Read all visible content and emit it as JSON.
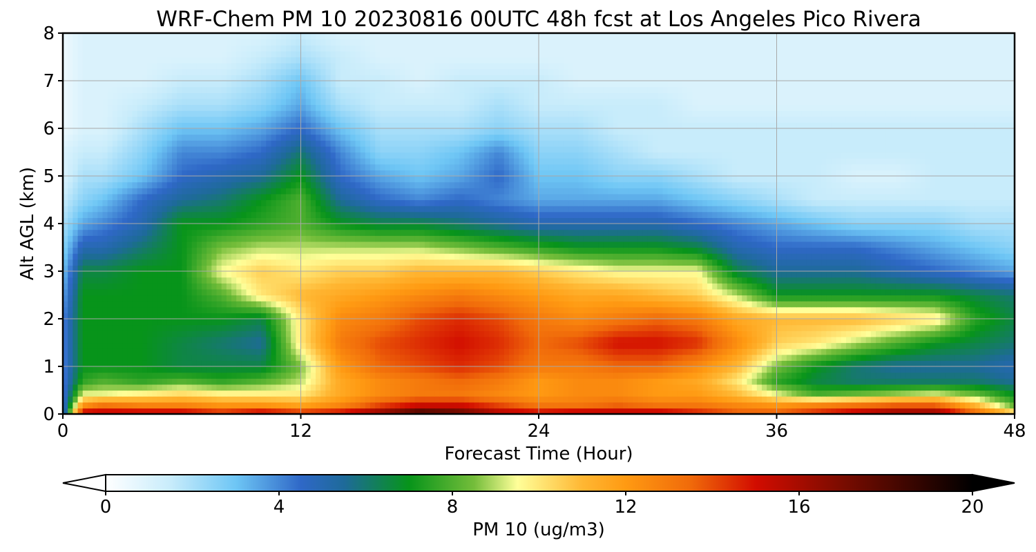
{
  "chart_data": {
    "type": "heatmap",
    "title": "WRF-Chem PM 10  20230816 00UTC 48h fcst at Los Angeles Pico Rivera",
    "xlabel": "Forecast Time (Hour)",
    "ylabel": "Alt AGL (km)",
    "xlim": [
      0,
      48
    ],
    "ylim": [
      0,
      8
    ],
    "x_ticks": [
      0,
      12,
      24,
      36,
      48
    ],
    "y_ticks": [
      0,
      1,
      2,
      3,
      4,
      5,
      6,
      7,
      8
    ],
    "grid": true,
    "colorbar": {
      "label": "PM 10  (ug/m3)",
      "orientation": "horizontal",
      "placement": "bottom",
      "min": 0,
      "max": 20,
      "ticks": [
        0,
        4,
        8,
        12,
        16,
        20
      ],
      "extend": "both"
    },
    "color_stops": [
      {
        "v": 0,
        "c": "#ffffff"
      },
      {
        "v": 1.5,
        "c": "#c8ecfb"
      },
      {
        "v": 3,
        "c": "#6ec6f5"
      },
      {
        "v": 4.5,
        "c": "#2f68c7"
      },
      {
        "v": 5.5,
        "c": "#1e6a9a"
      },
      {
        "v": 7,
        "c": "#07941a"
      },
      {
        "v": 8.5,
        "c": "#74bd3a"
      },
      {
        "v": 9.5,
        "c": "#ffff99"
      },
      {
        "v": 11,
        "c": "#ffb733"
      },
      {
        "v": 12,
        "c": "#ff9a12"
      },
      {
        "v": 13.5,
        "c": "#f06a0a"
      },
      {
        "v": 15,
        "c": "#d20c00"
      },
      {
        "v": 17,
        "c": "#7a0c00"
      },
      {
        "v": 20,
        "c": "#000000"
      }
    ],
    "x": [
      0,
      1,
      2,
      4,
      6,
      8,
      10,
      12,
      14,
      16,
      18,
      20,
      22,
      24,
      26,
      28,
      30,
      32,
      34,
      36,
      38,
      40,
      42,
      44,
      46,
      48
    ],
    "y": [
      0,
      0.2,
      0.4,
      0.7,
      1,
      1.5,
      2,
      2.5,
      3,
      3.5,
      4,
      4.5,
      5,
      5.5,
      6,
      6.5,
      7,
      7.5,
      8
    ],
    "z": [
      [
        4,
        16,
        16,
        16,
        16,
        15,
        16,
        15,
        15.5,
        17,
        19,
        18,
        16,
        15.5,
        16,
        16,
        16,
        15,
        14,
        14,
        15,
        16,
        17,
        17,
        14,
        11
      ],
      [
        4,
        12,
        13,
        12.5,
        12.5,
        12,
        12,
        11.5,
        12.5,
        14,
        15,
        15,
        14,
        13,
        13,
        13.5,
        13,
        13,
        12.5,
        12,
        12.5,
        13,
        13.5,
        13.5,
        11,
        8
      ],
      [
        4,
        9.5,
        9.5,
        10,
        10.5,
        10,
        10,
        10,
        11.5,
        12.5,
        13,
        13,
        12.5,
        12,
        12.5,
        12.5,
        12,
        12,
        11,
        9.5,
        8,
        8.5,
        9,
        9.5,
        8.5,
        7
      ],
      [
        4,
        7.5,
        8,
        7.5,
        8,
        7.5,
        8,
        9,
        11.5,
        12.5,
        13,
        13.5,
        13,
        12,
        12.5,
        12.5,
        12,
        11.5,
        10,
        7.5,
        6.5,
        6,
        6,
        6,
        6,
        5.5
      ],
      [
        4,
        7,
        7,
        7,
        6.5,
        6.5,
        6.5,
        8.5,
        12,
        13.5,
        14,
        14.5,
        14,
        13,
        13,
        13.5,
        13.5,
        12.5,
        11,
        8.5,
        7,
        6,
        5.5,
        5.5,
        5.5,
        5
      ],
      [
        4,
        7,
        7,
        7,
        6.5,
        6,
        5.5,
        10,
        13,
        14,
        14.5,
        15,
        14.5,
        13.5,
        14,
        15,
        15,
        14.5,
        12.5,
        10.5,
        10,
        9,
        8,
        7,
        6.5,
        6
      ],
      [
        4,
        7,
        7,
        7,
        7,
        7,
        6.5,
        10,
        12.5,
        13,
        14,
        14.5,
        14,
        13,
        12.5,
        13,
        13.5,
        13,
        11.5,
        11,
        11,
        11,
        10.5,
        10,
        7.5,
        6.5
      ],
      [
        3.5,
        7,
        7,
        7,
        7,
        8,
        10,
        11,
        11.5,
        12,
        12.5,
        13,
        12.5,
        12,
        11.5,
        11.5,
        11,
        10.5,
        9,
        7,
        7,
        7,
        7,
        7,
        6.5,
        6
      ],
      [
        3,
        6.5,
        6.5,
        7,
        7,
        9.5,
        10.5,
        10,
        10.5,
        10.5,
        11,
        11,
        11,
        10.5,
        10,
        9.5,
        9.5,
        9.5,
        6.5,
        5.5,
        5.5,
        5.5,
        5,
        4.5,
        4,
        3.5
      ],
      [
        2.5,
        5,
        5,
        6,
        7,
        8.5,
        9,
        9,
        9,
        9,
        9,
        8.5,
        8,
        7.5,
        7,
        7,
        7,
        6.5,
        5,
        4.5,
        4.5,
        4.5,
        4,
        3.5,
        3,
        2.5
      ],
      [
        2,
        3.5,
        4,
        5,
        7,
        7,
        7.5,
        8,
        7,
        6.5,
        6.5,
        6,
        5.5,
        5,
        5,
        5,
        5,
        4.5,
        4,
        3.5,
        3,
        2.5,
        2.5,
        2.5,
        2,
        2
      ],
      [
        1.5,
        2.5,
        3,
        4.5,
        5.5,
        6,
        7,
        8,
        5.5,
        4.5,
        4,
        4.5,
        4,
        3.5,
        3.5,
        3.5,
        3.5,
        3,
        2.5,
        2,
        1.5,
        1.5,
        1.5,
        1.5,
        1.5,
        1.5
      ],
      [
        1,
        2,
        2,
        3,
        4.5,
        5,
        5.5,
        7,
        4.5,
        3.5,
        3,
        3.5,
        4.5,
        3,
        3,
        2.5,
        2.5,
        2,
        1.5,
        1.5,
        1.5,
        1,
        1,
        1.5,
        1.5,
        1.5
      ],
      [
        1,
        1.5,
        1.5,
        2.5,
        4,
        4,
        4.5,
        6,
        4,
        2.5,
        2.5,
        3,
        4,
        2.5,
        2.5,
        2,
        1.5,
        1.5,
        1.5,
        1.5,
        1.5,
        1.5,
        1.5,
        1.5,
        1.5,
        1.5
      ],
      [
        0.5,
        1,
        1,
        2,
        3,
        3,
        3.5,
        4.5,
        3,
        2,
        2,
        2,
        2.5,
        2,
        2,
        1.5,
        1.5,
        1.5,
        1.5,
        1.5,
        1.5,
        1.5,
        1.5,
        1.5,
        1.5,
        1.5
      ],
      [
        0.5,
        1,
        1,
        1.5,
        2,
        2,
        2.5,
        3.5,
        2,
        1.5,
        1.5,
        1.5,
        2,
        1.5,
        1.5,
        1.5,
        1.5,
        1,
        1,
        1,
        1,
        1,
        1,
        1,
        1,
        1
      ],
      [
        0.5,
        1,
        1,
        1,
        1.5,
        1.5,
        2,
        3,
        1.5,
        1.5,
        1,
        1.5,
        1.5,
        1.5,
        1,
        1,
        1,
        1,
        1,
        1,
        1,
        1,
        1,
        1,
        1,
        1
      ],
      [
        0.5,
        1,
        1,
        1,
        1,
        1,
        1.5,
        2,
        1.5,
        1,
        1,
        1,
        1,
        1,
        1,
        1,
        1,
        1,
        1,
        1,
        1,
        1,
        1,
        1,
        1,
        1
      ],
      [
        0.5,
        1,
        1,
        1,
        1,
        1,
        1,
        1.5,
        1,
        1,
        1,
        1,
        1,
        1,
        1,
        1,
        1,
        1,
        1,
        1,
        1,
        1,
        1,
        1,
        1,
        1
      ]
    ]
  }
}
